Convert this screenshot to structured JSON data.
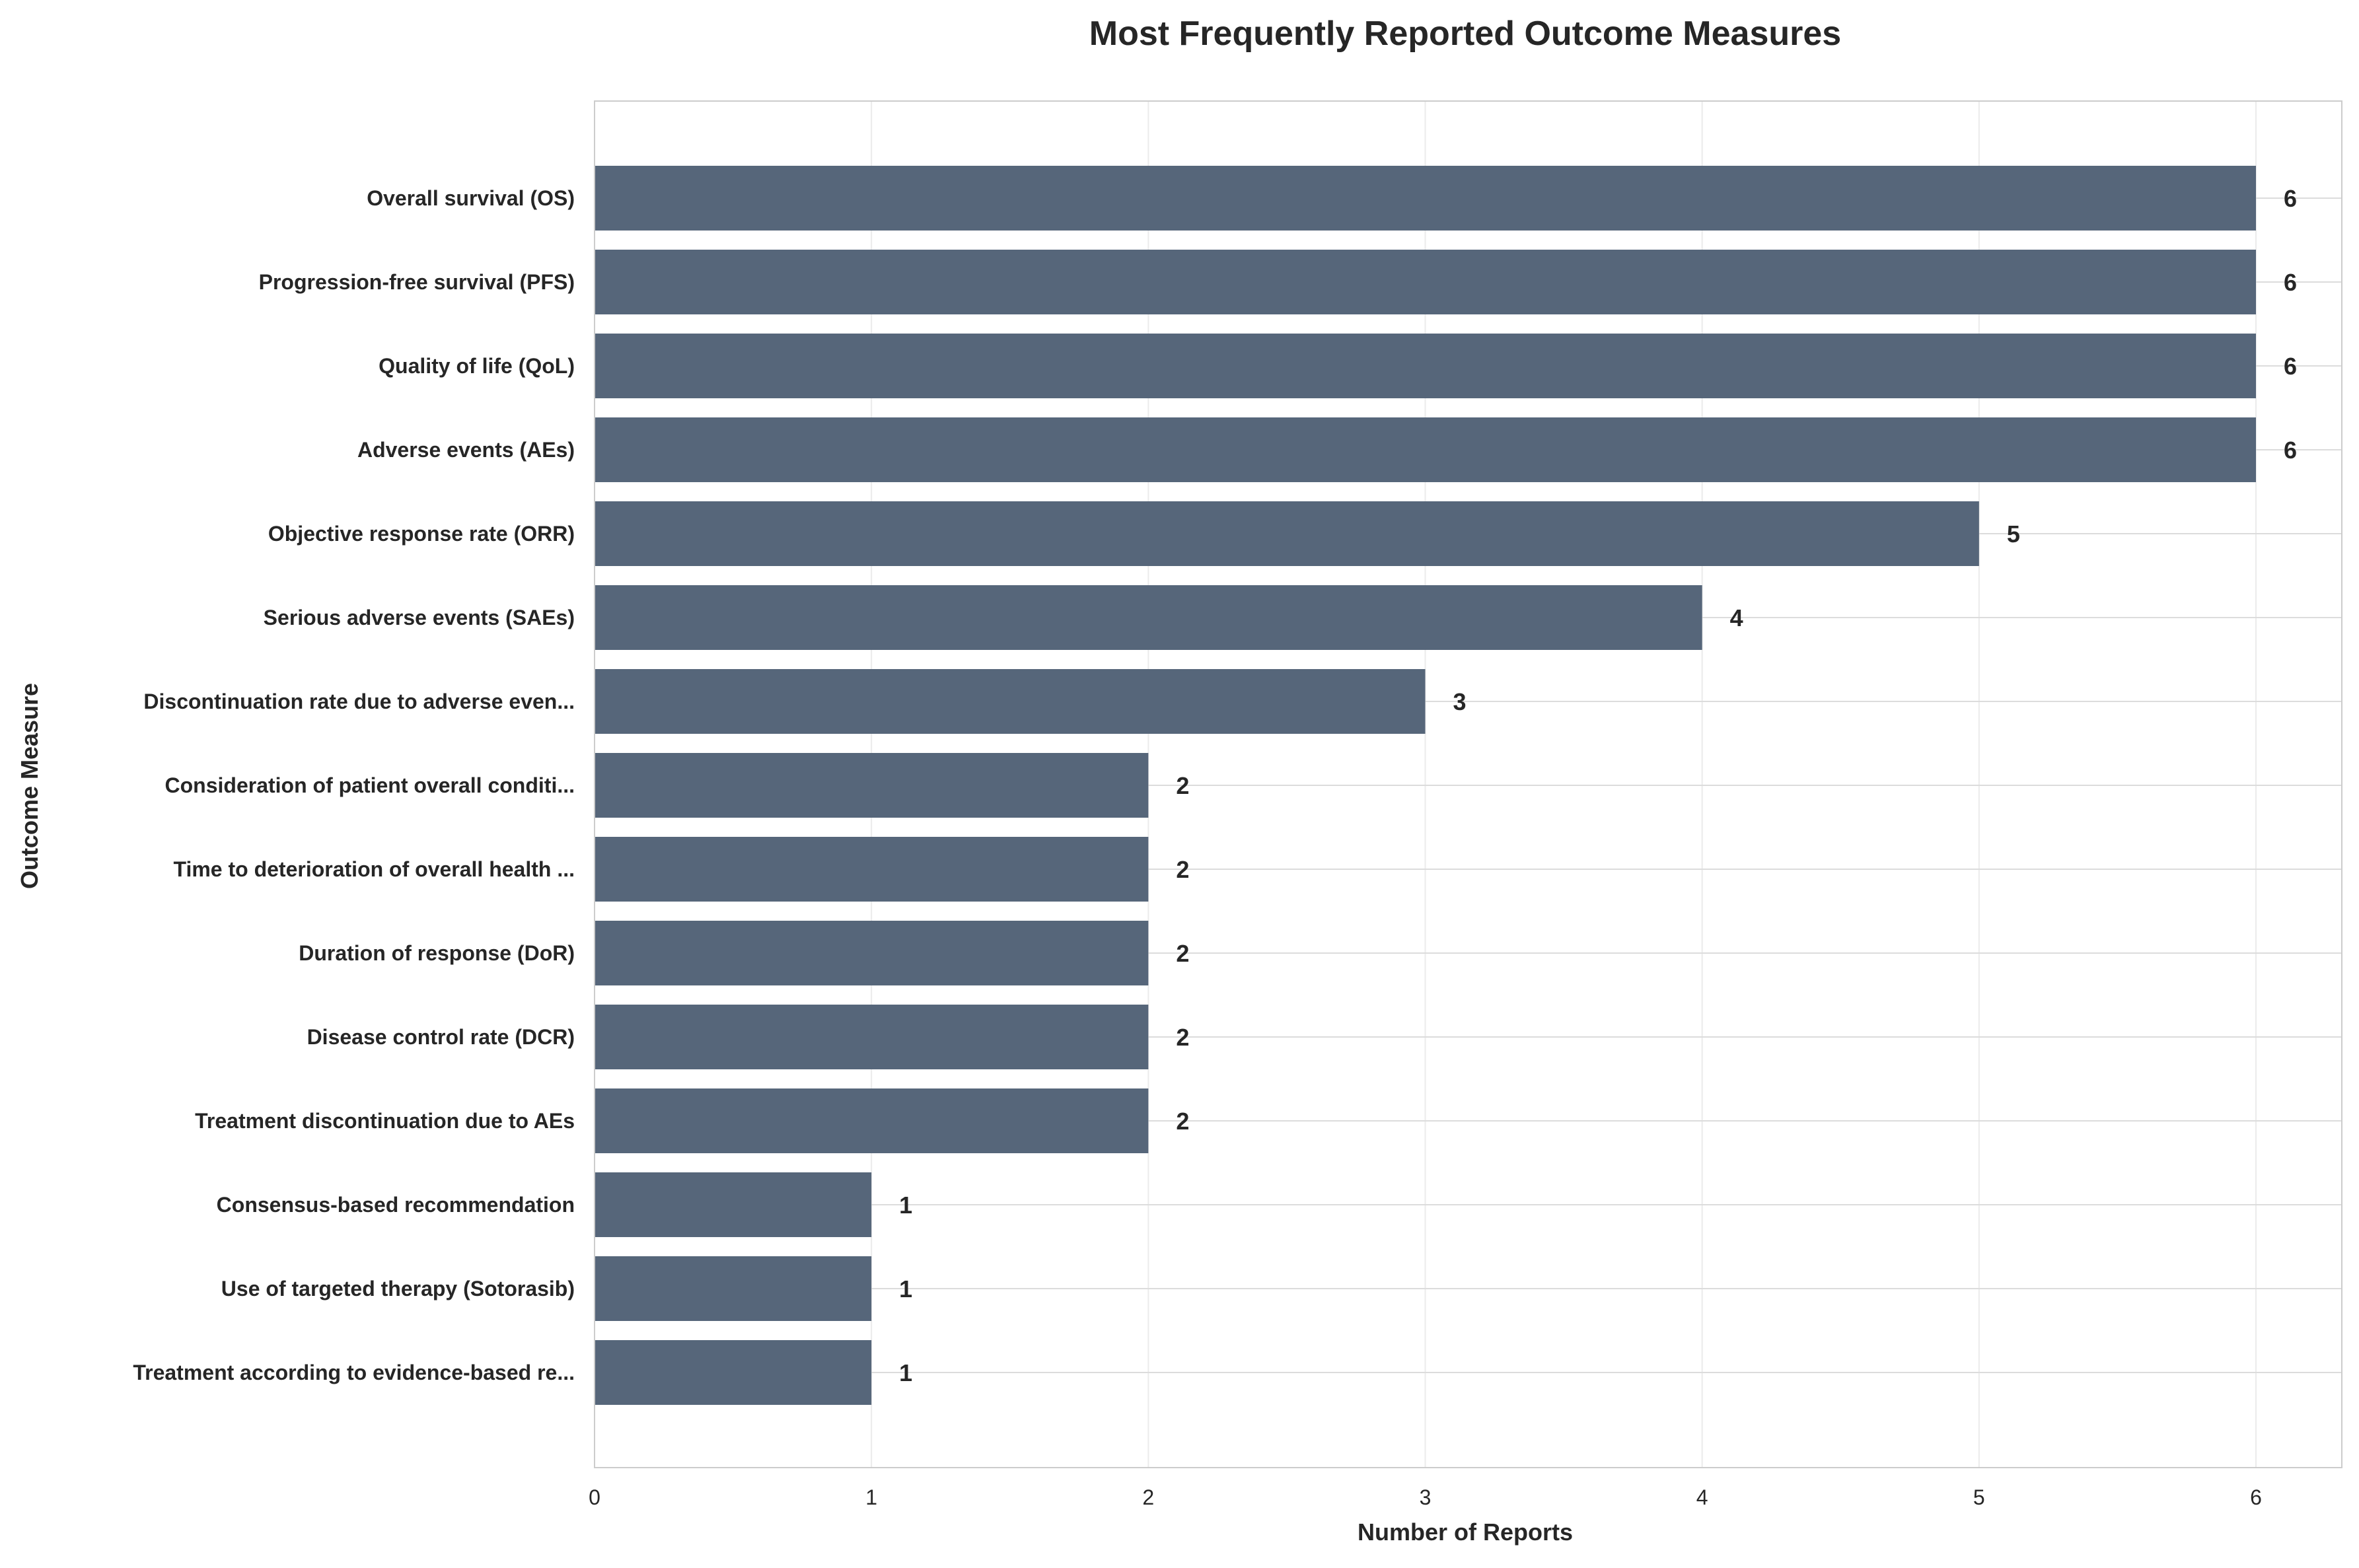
{
  "chart_data": {
    "type": "bar",
    "orientation": "horizontal",
    "title": "Most Frequently Reported Outcome Measures",
    "xlabel": "Number of Reports",
    "ylabel": "Outcome Measure",
    "xlim": [
      0,
      6.3
    ],
    "xticks": [
      0,
      1,
      2,
      3,
      4,
      5,
      6
    ],
    "grid": true,
    "bar_color": "#56667a",
    "categories": [
      "Overall survival (OS)",
      "Progression-free survival (PFS)",
      "Quality of life (QoL)",
      "Adverse events (AEs)",
      "Objective response rate (ORR)",
      "Serious adverse events (SAEs)",
      "Discontinuation rate due to adverse even...",
      "Consideration of patient overall conditi...",
      "Time to deterioration of overall health ...",
      "Duration of response (DoR)",
      "Disease control rate (DCR)",
      "Treatment discontinuation due to AEs",
      "Consensus-based recommendation",
      "Use of targeted therapy (Sotorasib)",
      "Treatment according to evidence-based re..."
    ],
    "values": [
      6,
      6,
      6,
      6,
      5,
      4,
      3,
      2,
      2,
      2,
      2,
      2,
      1,
      1,
      1
    ]
  }
}
